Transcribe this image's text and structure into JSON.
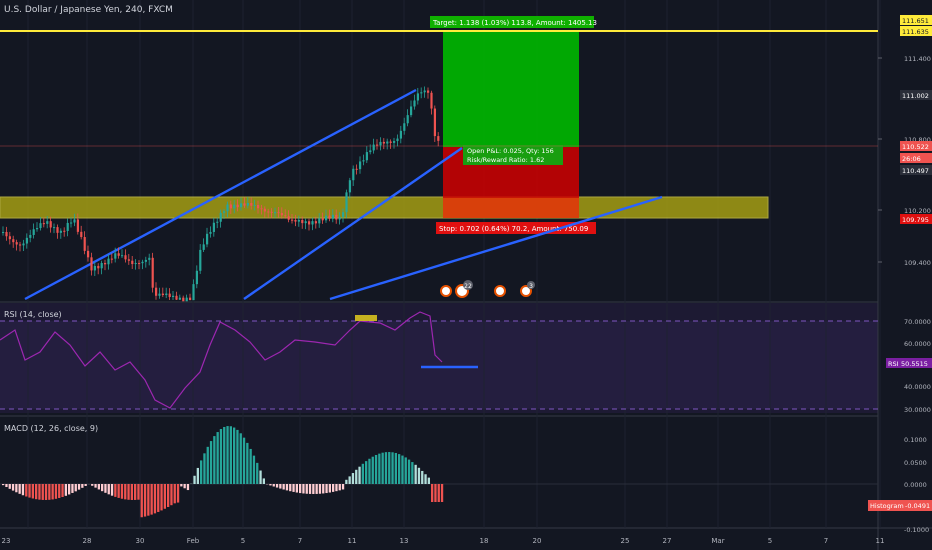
{
  "header": {
    "symbol_title": "U.S. Dollar / Japanese Yen, 240, FXCM"
  },
  "colors": {
    "background": "#131722",
    "up": "#26a69a",
    "down": "#ef5350",
    "trendline": "#2962ff",
    "resistance": "#ffeb3b",
    "zone": "#b7b011",
    "profit": "#00b800",
    "loss": "#d00000",
    "rsi_line": "#9c27b0"
  },
  "price_axis": {
    "ticks": [
      "111.400",
      "110.800",
      "110.200",
      "109.400"
    ],
    "badges": {
      "resistance_top": "111.651",
      "resistance": "111.635",
      "target_level": "111.002",
      "current": "110.522",
      "countdown": "26:06",
      "entry": "110.497",
      "stop": "109.795"
    }
  },
  "position": {
    "target_label": "Target: 1.138 (1.03%) 113.8, Amount: 1405.13",
    "open_pnl_label": "Open P&L: 0.025, Qty: 156",
    "risk_reward_label": "Risk/Reward Ratio: 1.62",
    "stop_label": "Stop: 0.702 (0.64%) 70.2, Amount: 750.09"
  },
  "event_markers": {
    "count_badge": "22",
    "flag_badge": "3"
  },
  "rsi": {
    "label": "RSI (14, close)",
    "ticks": [
      "70.0000",
      "60.0000",
      "40.0000",
      "30.0000"
    ],
    "badge_name": "RSI",
    "badge_value": "50.5515"
  },
  "macd": {
    "label": "MACD (12, 26, close, 9)",
    "ticks": [
      "0.1000",
      "0.0500",
      "0.0000",
      "-0.0500",
      "-0.1000"
    ],
    "badge_name": "Histogram",
    "badge_value": "-0.0491"
  },
  "time_axis": {
    "ticks": [
      "23",
      "28",
      "30",
      "Feb",
      "5",
      "7",
      "11",
      "13",
      "18",
      "20",
      "25",
      "27",
      "Mar",
      "5",
      "7",
      "11"
    ]
  }
}
